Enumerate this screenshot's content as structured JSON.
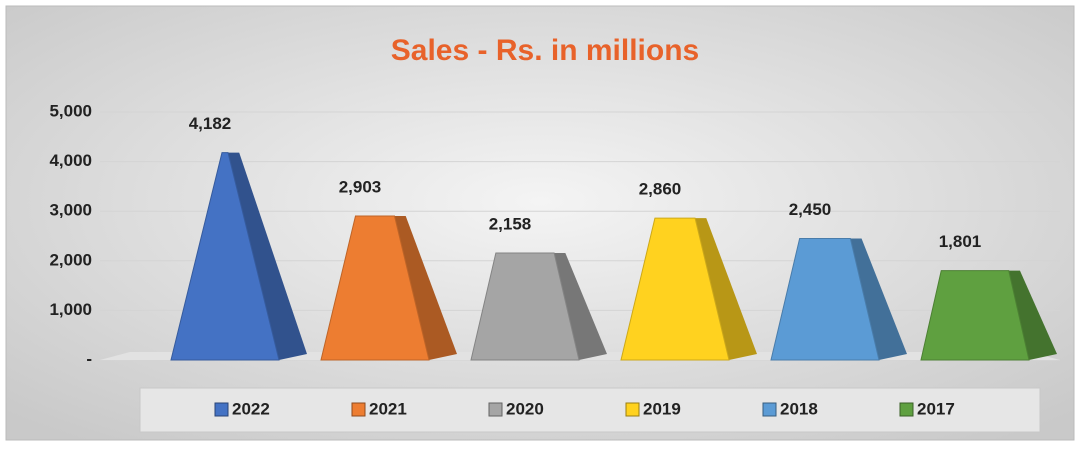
{
  "chart_data": {
    "type": "bar",
    "title": "Sales - Rs. in millions",
    "categories": [
      "2022",
      "2021",
      "2020",
      "2019",
      "2018",
      "2017"
    ],
    "values": [
      4182,
      2903,
      2158,
      2860,
      2450,
      1801
    ],
    "value_labels": [
      "4,182",
      "2,903",
      "2,158",
      "2,860",
      "2,450",
      "1,801"
    ],
    "colors": [
      "#4472c4",
      "#ed7d31",
      "#a5a5a5",
      "#ffd21f",
      "#5b9bd5",
      "#5fa040"
    ],
    "ylim": [
      0,
      5000
    ],
    "yticks": [
      {
        "value": 0,
        "label": "-"
      },
      {
        "value": 1000,
        "label": "1,000"
      },
      {
        "value": 2000,
        "label": "2,000"
      },
      {
        "value": 3000,
        "label": "3,000"
      },
      {
        "value": 4000,
        "label": "4,000"
      },
      {
        "value": 5000,
        "label": "5,000"
      }
    ],
    "grid": true,
    "legend": "bottom"
  }
}
